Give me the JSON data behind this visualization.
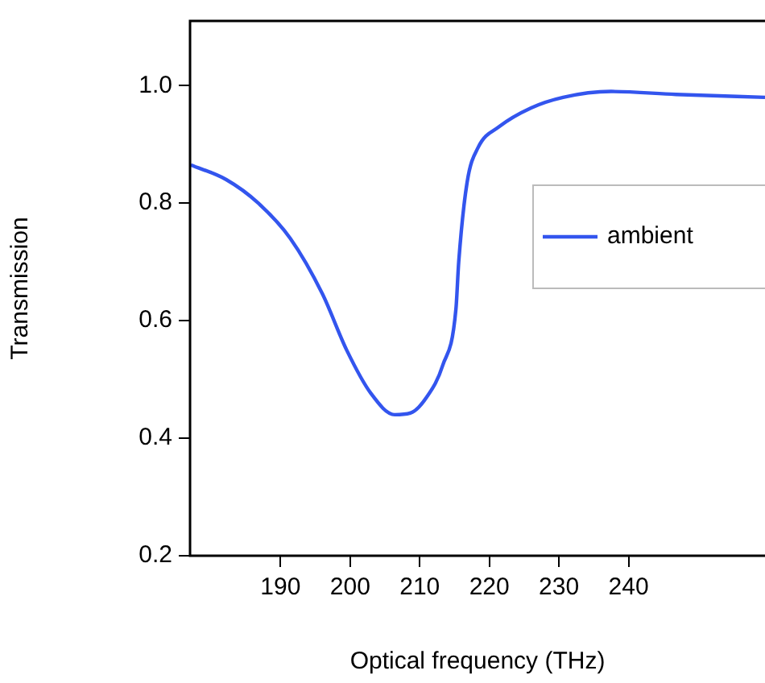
{
  "chart_data": {
    "type": "line",
    "xlabel": "Optical frequency (THz)",
    "ylabel": "Transmission",
    "xlim": [
      177,
      259.6
    ],
    "xticks": [
      190,
      200,
      210,
      220,
      230,
      240
    ],
    "ylim": [
      0.2,
      1.11
    ],
    "yticks": [
      0.2,
      0.4,
      0.6,
      0.8,
      {
        "value": 1,
        "label": "1.0"
      }
    ],
    "grid": false,
    "legend": "right",
    "marker": "none",
    "line_style": "solid",
    "series": [
      {
        "name": "ambient",
        "color": "#3355ee",
        "x": [
          177.1,
          182.2,
          186.8,
          191.4,
          196,
          199.5,
          203,
          206.4,
          208.7,
          211,
          213.3,
          215.2,
          215.6,
          216.8,
          218.4,
          221.4,
          226,
          230.6,
          237.5,
          246.8,
          259.6
        ],
        "values": [
          0.865,
          0.84,
          0.8,
          0.74,
          0.646,
          0.55,
          0.476,
          0.44,
          0.443,
          0.47,
          0.524,
          0.62,
          0.7,
          0.835,
          0.895,
          0.93,
          0.962,
          0.98,
          0.99,
          0.985,
          0.98
        ]
      }
    ]
  }
}
